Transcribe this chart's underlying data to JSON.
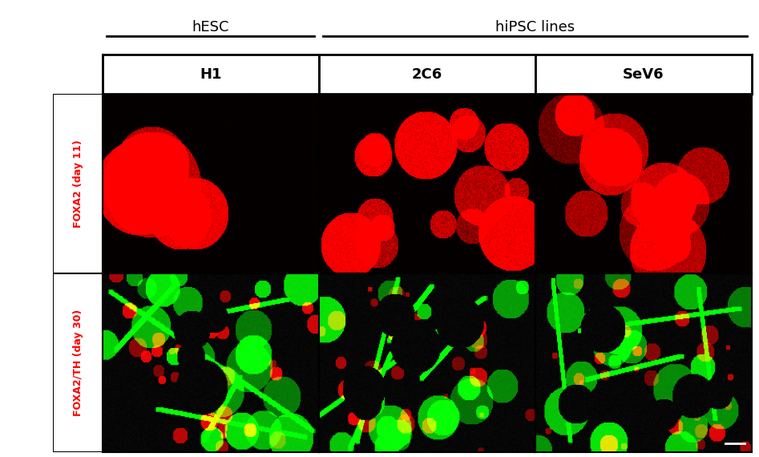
{
  "bg_color": "#ffffff",
  "title_hesc": "hESC",
  "title_hipsc": "hiPSC lines",
  "col_labels": [
    "H1",
    "2C6",
    "SeV6"
  ],
  "row_label_top": "FOXA2 (day 11)",
  "row_label_bottom": "FOXA2/TH (day 30)",
  "row_label_top_colors": [
    "red"
  ],
  "row_label_bottom_colors": [
    "red",
    "green"
  ],
  "scale_bar_color": "#ffffff",
  "outer_border_color": "#000000",
  "header_line_color": "#000000",
  "font_size_title": 13,
  "font_size_col": 13,
  "font_size_row": 9
}
